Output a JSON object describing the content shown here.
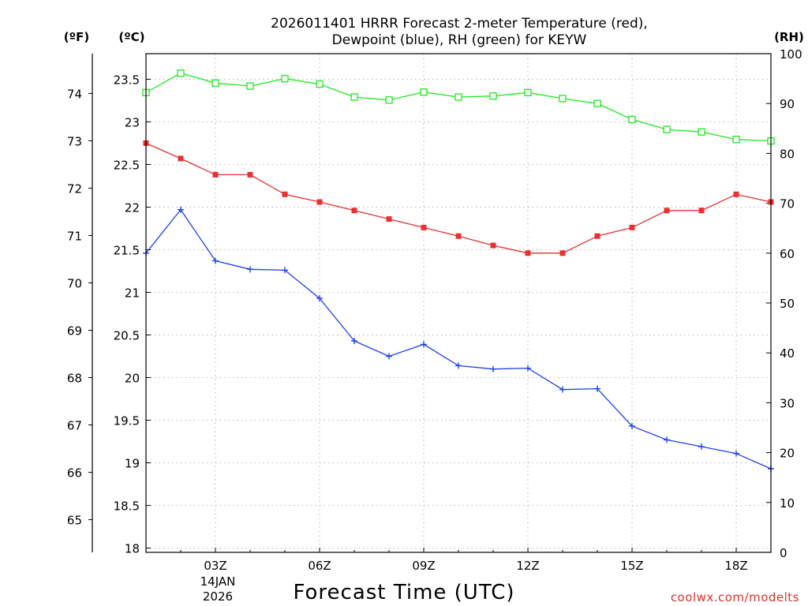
{
  "chart_data": {
    "type": "line",
    "title_lines": [
      "2026011401 HRRR Forecast 2-meter Temperature (red),",
      "Dewpoint (blue), RH (green) for KEYW"
    ],
    "xlabel": "Forecast Time (UTC)",
    "credit": "coolwx.com/modelts",
    "unit_labels": {
      "fahrenheit": "(ºF)",
      "celsius": "(ºC)",
      "rh": "(RH)"
    },
    "x": [
      1,
      2,
      3,
      4,
      5,
      6,
      7,
      8,
      9,
      10,
      11,
      12,
      13,
      14,
      15,
      16,
      17,
      18,
      19
    ],
    "xlim": [
      1,
      19
    ],
    "x_ticks": [
      {
        "x": 3,
        "label": "03Z"
      },
      {
        "x": 6,
        "label": "06Z"
      },
      {
        "x": 9,
        "label": "09Z"
      },
      {
        "x": 12,
        "label": "12Z"
      },
      {
        "x": 15,
        "label": "15Z"
      },
      {
        "x": 18,
        "label": "18Z"
      }
    ],
    "date_labels": [
      "14JAN",
      "2026"
    ],
    "celsius_axis": {
      "range": [
        17.95,
        23.8
      ],
      "ticks": [
        18,
        18.5,
        19,
        19.5,
        20,
        20.5,
        21,
        21.5,
        22,
        22.5,
        23,
        23.5
      ]
    },
    "fahrenheit_axis": {
      "range": [
        64.31,
        74.84
      ],
      "ticks": [
        65,
        66,
        67,
        68,
        69,
        70,
        71,
        72,
        73,
        74
      ]
    },
    "rh_axis": {
      "range": [
        0,
        100
      ],
      "ticks": [
        0,
        10,
        20,
        30,
        40,
        50,
        60,
        70,
        80,
        90,
        100
      ]
    },
    "series": [
      {
        "name": "Temperature",
        "color": "#e83030",
        "marker": "filled-square",
        "axis": "celsius",
        "values": [
          22.75,
          22.57,
          22.38,
          22.38,
          22.15,
          22.06,
          21.96,
          21.86,
          21.76,
          21.66,
          21.55,
          21.46,
          21.46,
          21.66,
          21.76,
          21.96,
          21.96,
          22.15,
          22.06
        ]
      },
      {
        "name": "Dewpoint",
        "color": "#2040e8",
        "marker": "plus",
        "axis": "celsius",
        "values": [
          21.46,
          21.97,
          21.37,
          21.27,
          21.26,
          20.93,
          20.43,
          20.25,
          20.39,
          20.14,
          20.1,
          20.11,
          19.86,
          19.87,
          19.43,
          19.27,
          19.19,
          19.11,
          18.93
        ]
      },
      {
        "name": "RH",
        "color": "#20e820",
        "marker": "open-square",
        "axis": "rh",
        "values": [
          92.2,
          96.1,
          94.1,
          93.5,
          95.0,
          93.9,
          91.3,
          90.7,
          92.3,
          91.3,
          91.5,
          92.2,
          91.0,
          90.0,
          86.8,
          84.8,
          84.3,
          82.8,
          82.5
        ]
      }
    ],
    "grid": true
  }
}
